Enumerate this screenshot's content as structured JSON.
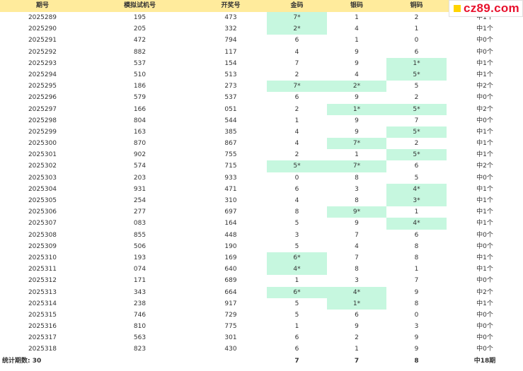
{
  "headers": {
    "period": "期号",
    "simulated": "模拟试机号",
    "draw": "开奖号",
    "gold": "金码",
    "silver": "银码",
    "copper": "铜码",
    "result": ""
  },
  "logo": {
    "text": "cz89.com"
  },
  "rows": [
    {
      "period": "2025289",
      "sim": "195",
      "draw": "473",
      "gold": "7*",
      "silver": "1",
      "copper": "2",
      "result": "中1个",
      "hits": [
        true,
        false,
        false
      ]
    },
    {
      "period": "2025290",
      "sim": "205",
      "draw": "332",
      "gold": "2*",
      "silver": "4",
      "copper": "1",
      "result": "中1个",
      "hits": [
        true,
        false,
        false
      ]
    },
    {
      "period": "2025291",
      "sim": "472",
      "draw": "794",
      "gold": "6",
      "silver": "1",
      "copper": "0",
      "result": "中0个",
      "hits": [
        false,
        false,
        false
      ]
    },
    {
      "period": "2025292",
      "sim": "882",
      "draw": "117",
      "gold": "4",
      "silver": "9",
      "copper": "6",
      "result": "中0个",
      "hits": [
        false,
        false,
        false
      ]
    },
    {
      "period": "2025293",
      "sim": "537",
      "draw": "154",
      "gold": "7",
      "silver": "9",
      "copper": "1*",
      "result": "中1个",
      "hits": [
        false,
        false,
        true
      ]
    },
    {
      "period": "2025294",
      "sim": "510",
      "draw": "513",
      "gold": "2",
      "silver": "4",
      "copper": "5*",
      "result": "中1个",
      "hits": [
        false,
        false,
        true
      ]
    },
    {
      "period": "2025295",
      "sim": "186",
      "draw": "273",
      "gold": "7*",
      "silver": "2*",
      "copper": "5",
      "result": "中2个",
      "hits": [
        true,
        true,
        false
      ]
    },
    {
      "period": "2025296",
      "sim": "579",
      "draw": "537",
      "gold": "6",
      "silver": "9",
      "copper": "2",
      "result": "中0个",
      "hits": [
        false,
        false,
        false
      ]
    },
    {
      "period": "2025297",
      "sim": "166",
      "draw": "051",
      "gold": "2",
      "silver": "1*",
      "copper": "5*",
      "result": "中2个",
      "hits": [
        false,
        true,
        true
      ]
    },
    {
      "period": "2025298",
      "sim": "804",
      "draw": "544",
      "gold": "1",
      "silver": "9",
      "copper": "7",
      "result": "中0个",
      "hits": [
        false,
        false,
        false
      ]
    },
    {
      "period": "2025299",
      "sim": "163",
      "draw": "385",
      "gold": "4",
      "silver": "9",
      "copper": "5*",
      "result": "中1个",
      "hits": [
        false,
        false,
        true
      ]
    },
    {
      "period": "2025300",
      "sim": "870",
      "draw": "867",
      "gold": "4",
      "silver": "7*",
      "copper": "2",
      "result": "中1个",
      "hits": [
        false,
        true,
        false
      ]
    },
    {
      "period": "2025301",
      "sim": "902",
      "draw": "755",
      "gold": "2",
      "silver": "1",
      "copper": "5*",
      "result": "中1个",
      "hits": [
        false,
        false,
        true
      ]
    },
    {
      "period": "2025302",
      "sim": "574",
      "draw": "715",
      "gold": "5*",
      "silver": "7*",
      "copper": "6",
      "result": "中2个",
      "hits": [
        true,
        true,
        false
      ]
    },
    {
      "period": "2025303",
      "sim": "203",
      "draw": "933",
      "gold": "0",
      "silver": "8",
      "copper": "5",
      "result": "中0个",
      "hits": [
        false,
        false,
        false
      ]
    },
    {
      "period": "2025304",
      "sim": "931",
      "draw": "471",
      "gold": "6",
      "silver": "3",
      "copper": "4*",
      "result": "中1个",
      "hits": [
        false,
        false,
        true
      ]
    },
    {
      "period": "2025305",
      "sim": "254",
      "draw": "310",
      "gold": "4",
      "silver": "8",
      "copper": "3*",
      "result": "中1个",
      "hits": [
        false,
        false,
        true
      ]
    },
    {
      "period": "2025306",
      "sim": "277",
      "draw": "697",
      "gold": "8",
      "silver": "9*",
      "copper": "1",
      "result": "中1个",
      "hits": [
        false,
        true,
        false
      ]
    },
    {
      "period": "2025307",
      "sim": "083",
      "draw": "164",
      "gold": "5",
      "silver": "9",
      "copper": "4*",
      "result": "中1个",
      "hits": [
        false,
        false,
        true
      ]
    },
    {
      "period": "2025308",
      "sim": "855",
      "draw": "448",
      "gold": "3",
      "silver": "7",
      "copper": "6",
      "result": "中0个",
      "hits": [
        false,
        false,
        false
      ]
    },
    {
      "period": "2025309",
      "sim": "506",
      "draw": "190",
      "gold": "5",
      "silver": "4",
      "copper": "8",
      "result": "中0个",
      "hits": [
        false,
        false,
        false
      ]
    },
    {
      "period": "2025310",
      "sim": "193",
      "draw": "169",
      "gold": "6*",
      "silver": "7",
      "copper": "8",
      "result": "中1个",
      "hits": [
        true,
        false,
        false
      ]
    },
    {
      "period": "2025311",
      "sim": "074",
      "draw": "640",
      "gold": "4*",
      "silver": "8",
      "copper": "1",
      "result": "中1个",
      "hits": [
        true,
        false,
        false
      ]
    },
    {
      "period": "2025312",
      "sim": "171",
      "draw": "689",
      "gold": "1",
      "silver": "3",
      "copper": "7",
      "result": "中0个",
      "hits": [
        false,
        false,
        false
      ]
    },
    {
      "period": "2025313",
      "sim": "343",
      "draw": "664",
      "gold": "6*",
      "silver": "4*",
      "copper": "9",
      "result": "中2个",
      "hits": [
        true,
        true,
        false
      ]
    },
    {
      "period": "2025314",
      "sim": "238",
      "draw": "917",
      "gold": "5",
      "silver": "1*",
      "copper": "8",
      "result": "中1个",
      "hits": [
        false,
        true,
        false
      ]
    },
    {
      "period": "2025315",
      "sim": "746",
      "draw": "729",
      "gold": "5",
      "silver": "6",
      "copper": "0",
      "result": "中0个",
      "hits": [
        false,
        false,
        false
      ]
    },
    {
      "period": "2025316",
      "sim": "810",
      "draw": "775",
      "gold": "1",
      "silver": "9",
      "copper": "3",
      "result": "中0个",
      "hits": [
        false,
        false,
        false
      ]
    },
    {
      "period": "2025317",
      "sim": "563",
      "draw": "301",
      "gold": "6",
      "silver": "2",
      "copper": "9",
      "result": "中0个",
      "hits": [
        false,
        false,
        false
      ]
    },
    {
      "period": "2025318",
      "sim": "823",
      "draw": "430",
      "gold": "6",
      "silver": "1",
      "copper": "9",
      "result": "中0个",
      "hits": [
        false,
        false,
        false
      ]
    }
  ],
  "summary": {
    "label": "统计期数: 30",
    "gold": "7",
    "silver": "7",
    "copper": "8",
    "result": "中18期"
  },
  "colors": {
    "header_bg": "#ffeb9c",
    "hit_bg": "#c6f7df",
    "logo_text": "#e8112d",
    "logo_mark": "#ffd400"
  }
}
